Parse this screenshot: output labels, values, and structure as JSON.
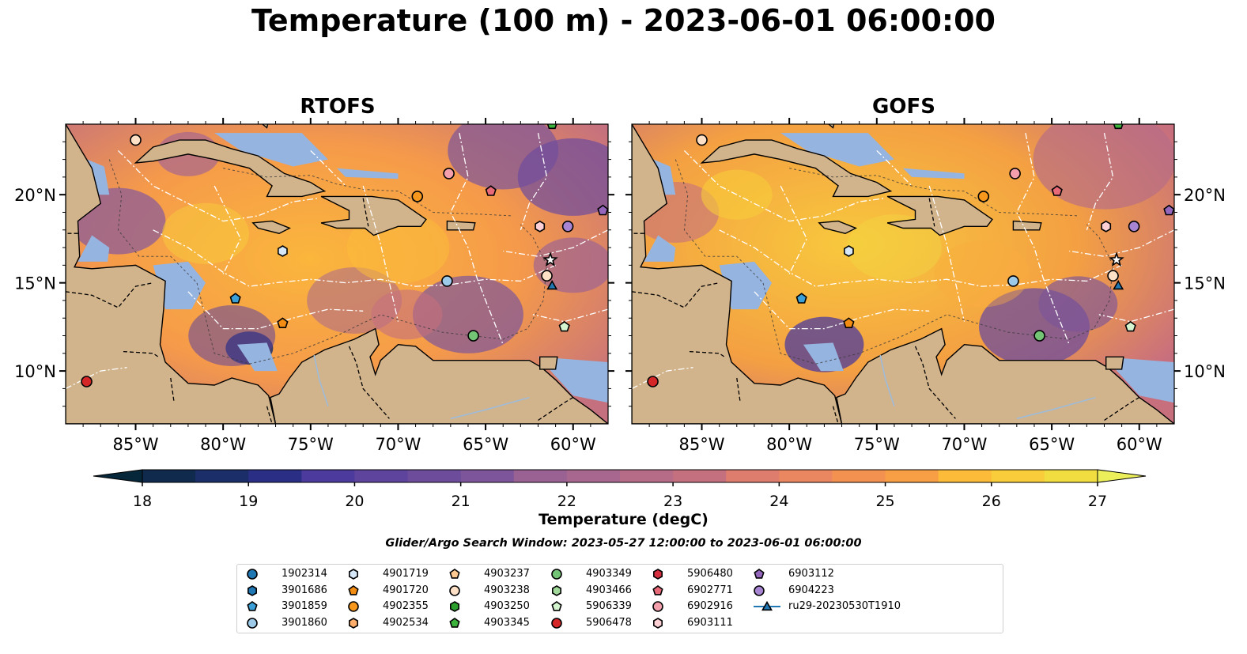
{
  "title": "Temperature (100 m) - 2023-06-01 06:00:00",
  "panels": [
    {
      "title": "RTOFS"
    },
    {
      "title": "GOFS"
    }
  ],
  "map_extent": {
    "lon": [
      -89,
      -58
    ],
    "lat": [
      7,
      24
    ]
  },
  "lon_ticks": [
    "85°W",
    "80°W",
    "75°W",
    "70°W",
    "65°W",
    "60°W"
  ],
  "lat_ticks": [
    "20°N",
    "15°N",
    "10°N"
  ],
  "colorbar": {
    "label": "Temperature (degC)",
    "min": 18,
    "max": 27,
    "step": 0.5,
    "ticks": [
      "18",
      "19",
      "20",
      "21",
      "22",
      "23",
      "24",
      "25",
      "26",
      "27"
    ],
    "extend": "both",
    "colors": [
      "#06263a",
      "#102a4e",
      "#1b2e69",
      "#2a2f85",
      "#3b3596",
      "#4c3b9c",
      "#5e449d",
      "#6e4c9c",
      "#7d559a",
      "#8c5c97",
      "#9a6193",
      "#a8678e",
      "#b66b87",
      "#c4707f",
      "#d27677",
      "#de7d6d",
      "#ea8660",
      "#f39151",
      "#f89e45",
      "#fbac3e",
      "#fcbc3a",
      "#f8cc3b",
      "#f2dd41",
      "#ecef5a"
    ]
  },
  "search_window": "Glider/Argo Search Window: 2023-05-27 12:00:00 to 2023-06-01 06:00:00",
  "land_color": "#d2b48c",
  "shallow_color": "#96b4e0",
  "legend": [
    {
      "label": "1902314",
      "marker": "circle",
      "color": "#1f77b4"
    },
    {
      "label": "3901686",
      "marker": "hexagon",
      "color": "#1f77b4"
    },
    {
      "label": "3901859",
      "marker": "pentagon",
      "color": "#3ba0d8"
    },
    {
      "label": "3901860",
      "marker": "circle",
      "color": "#9ecae9"
    },
    {
      "label": "4901719",
      "marker": "hexagon",
      "color": "#d6e8f7"
    },
    {
      "label": "4901720",
      "marker": "pentagon",
      "color": "#f28c12"
    },
    {
      "label": "4902355",
      "marker": "circle",
      "color": "#f7981c"
    },
    {
      "label": "4902534",
      "marker": "hexagon",
      "color": "#fdae6b"
    },
    {
      "label": "4903237",
      "marker": "pentagon",
      "color": "#fdc990"
    },
    {
      "label": "4903238",
      "marker": "circle",
      "color": "#fde0c5"
    },
    {
      "label": "4903250",
      "marker": "hexagon",
      "color": "#2ca02c"
    },
    {
      "label": "4903345",
      "marker": "pentagon",
      "color": "#3cb43c"
    },
    {
      "label": "4903349",
      "marker": "circle",
      "color": "#74c476"
    },
    {
      "label": "4903466",
      "marker": "hexagon",
      "color": "#a1d99b"
    },
    {
      "label": "5906339",
      "marker": "pentagon",
      "color": "#d5f5d0"
    },
    {
      "label": "5906478",
      "marker": "circle",
      "color": "#d62728"
    },
    {
      "label": "5906480",
      "marker": "hexagon",
      "color": "#d63040"
    },
    {
      "label": "6902771",
      "marker": "pentagon",
      "color": "#e86a78"
    },
    {
      "label": "6902916",
      "marker": "circle",
      "color": "#f4a0ac"
    },
    {
      "label": "6903111",
      "marker": "hexagon",
      "color": "#fcd0d5"
    },
    {
      "label": "6903112",
      "marker": "pentagon",
      "color": "#9467bd"
    },
    {
      "label": "6904223",
      "marker": "circle",
      "color": "#a785d2"
    },
    {
      "label": "ru29-20230530T1910",
      "marker": "triangle-line",
      "color": "#1f77b4"
    }
  ],
  "floats": [
    {
      "lon": -85.0,
      "lat": 23.1,
      "marker": "circle",
      "color": "#fde0c5"
    },
    {
      "lon": -67.1,
      "lat": 21.2,
      "marker": "circle",
      "color": "#f4a0ac"
    },
    {
      "lon": -64.7,
      "lat": 20.2,
      "marker": "pentagon",
      "color": "#e86a78"
    },
    {
      "lon": -68.9,
      "lat": 19.9,
      "marker": "circle",
      "color": "#f7981c"
    },
    {
      "lon": -58.3,
      "lat": 19.1,
      "marker": "pentagon",
      "color": "#9467bd"
    },
    {
      "lon": -60.3,
      "lat": 18.2,
      "marker": "circle",
      "color": "#a785d2"
    },
    {
      "lon": -61.9,
      "lat": 18.2,
      "marker": "hexagon",
      "color": "#fcd0d5"
    },
    {
      "lon": -76.6,
      "lat": 16.8,
      "marker": "hexagon",
      "color": "#d6e8f7"
    },
    {
      "lon": -61.5,
      "lat": 15.4,
      "marker": "circle",
      "color": "#fde0c5"
    },
    {
      "lon": -67.2,
      "lat": 15.1,
      "marker": "circle",
      "color": "#9ecae9"
    },
    {
      "lon": -79.3,
      "lat": 14.1,
      "marker": "pentagon",
      "color": "#3ba0d8"
    },
    {
      "lon": -76.6,
      "lat": 12.7,
      "marker": "pentagon",
      "color": "#f28c12"
    },
    {
      "lon": -60.5,
      "lat": 12.5,
      "marker": "pentagon",
      "color": "#d5f5d0"
    },
    {
      "lon": -65.7,
      "lat": 12.0,
      "marker": "circle",
      "color": "#74c476"
    },
    {
      "lon": -87.8,
      "lat": 9.4,
      "marker": "circle",
      "color": "#d62728"
    },
    {
      "lon": -61.2,
      "lat": 24.0,
      "marker": "pentagon",
      "color": "#3cb43c"
    },
    {
      "lon": -61.3,
      "lat": 16.3,
      "marker": "star",
      "color": "#ffffff"
    },
    {
      "lon": -61.2,
      "lat": 14.8,
      "marker": "triangle",
      "color": "#1f77b4"
    }
  ]
}
